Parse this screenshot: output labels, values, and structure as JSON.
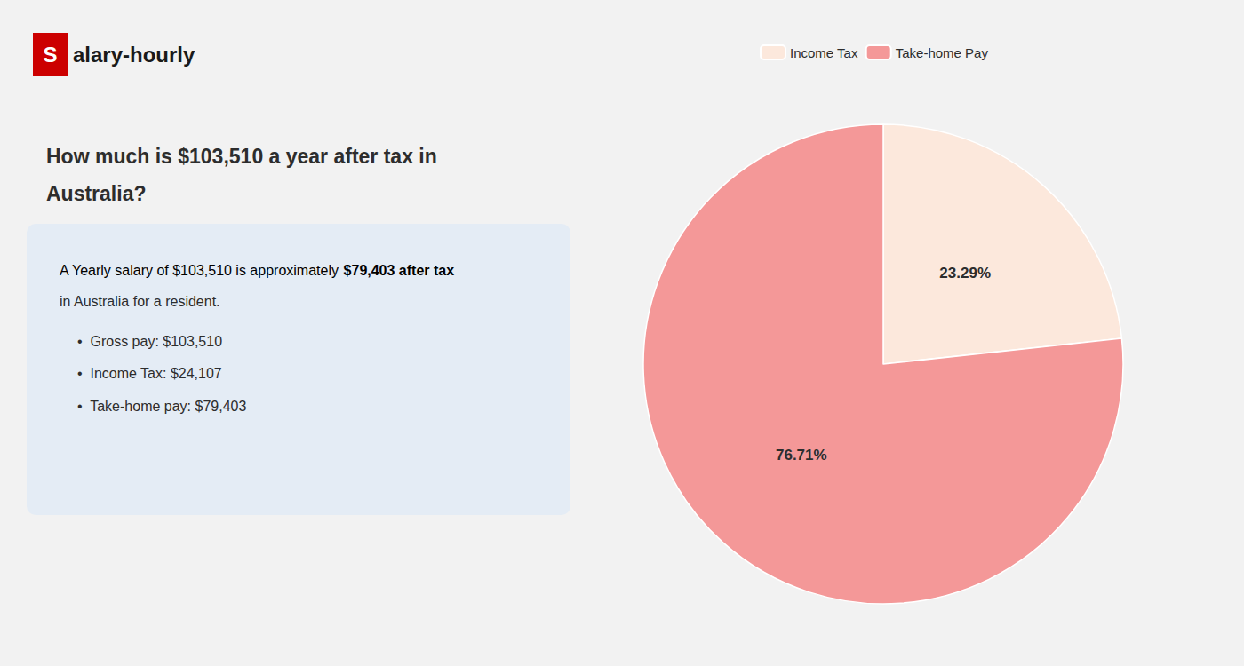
{
  "chart_data": {
    "type": "pie",
    "title": "How much is $103,510 a year after tax in\nAustralia?",
    "annotations": [
      "S",
      "alary-hourly",
      "A Yearly salary of $103,510 is approximately ",
      "$79,403 after tax",
      "in Australia for a resident.",
      "•  Gross pay: $103,510",
      "•  Income Tax: $24,107",
      "•  Take-home pay: $79,403"
    ],
    "categories": [
      "Income Tax",
      "Take-home Pay"
    ],
    "values": [
      23.29,
      76.71
    ],
    "value_labels": [
      "23.29%",
      "76.71%"
    ],
    "colors": [
      "#fce8dc",
      "#f49898"
    ],
    "data_labels": true,
    "legend": "top"
  }
}
